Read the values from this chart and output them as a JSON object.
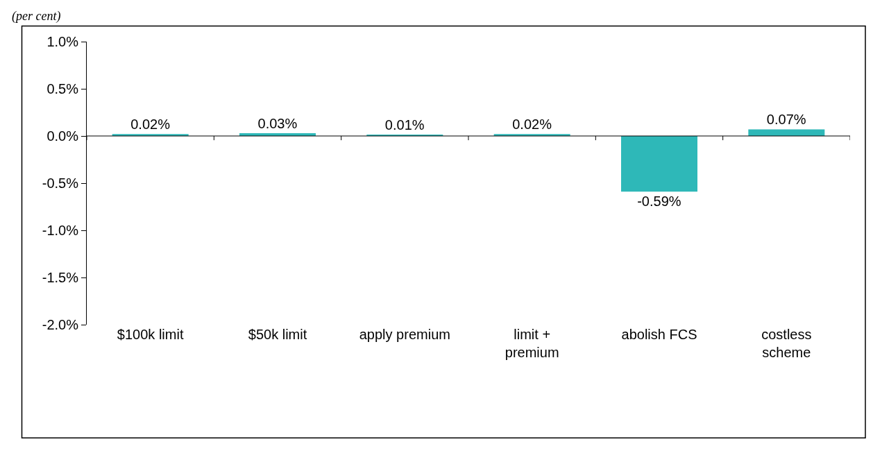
{
  "chart_data": {
    "type": "bar",
    "subtitle": "(per cent)",
    "categories": [
      "$100k limit",
      "$50k limit",
      "apply premium",
      "limit + premium",
      "abolish FCS",
      "costless scheme"
    ],
    "values": [
      0.02,
      0.03,
      0.01,
      0.02,
      -0.59,
      0.07
    ],
    "color": "#2eb8b8",
    "value_labels": [
      "0.02%",
      "0.03%",
      "0.01%",
      "0.02%",
      "-0.59%",
      "0.07%"
    ],
    "ylim": [
      -2.0,
      1.0
    ],
    "yticks": [
      {
        "value": 1.0,
        "label": "1.0%"
      },
      {
        "value": 0.5,
        "label": "0.5%"
      },
      {
        "value": 0.0,
        "label": "0.0%"
      },
      {
        "value": -0.5,
        "label": "-0.5%"
      },
      {
        "value": -1.0,
        "label": "-1.0%"
      },
      {
        "value": -1.5,
        "label": "-1.5%"
      },
      {
        "value": -2.0,
        "label": "-2.0%"
      }
    ],
    "legend": false
  }
}
